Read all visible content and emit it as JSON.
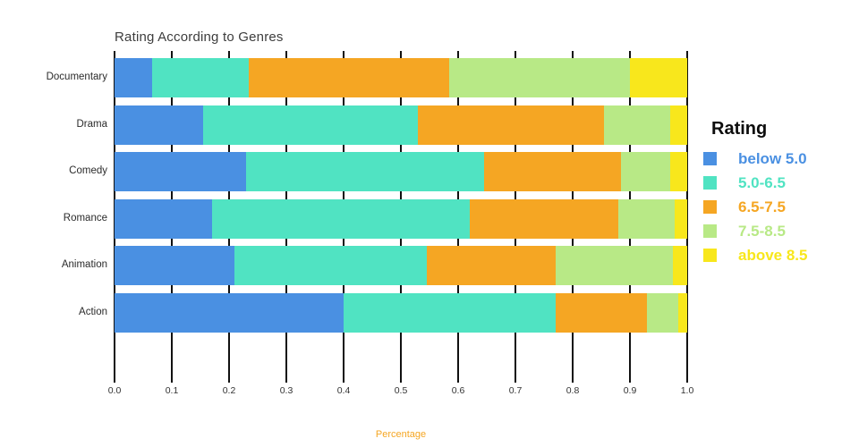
{
  "chart_data": {
    "type": "bar",
    "orientation": "horizontal-stacked",
    "title": "Rating According to Genres",
    "xlabel": "Percentage",
    "ylabel": "",
    "xlim": [
      0,
      1
    ],
    "xticks": [
      "0.0",
      "0.1",
      "0.2",
      "0.3",
      "0.4",
      "0.5",
      "0.6",
      "0.7",
      "0.8",
      "0.9",
      "1.0"
    ],
    "grid": "vertical",
    "categories": [
      "Documentary",
      "Drama",
      "Comedy",
      "Romance",
      "Animation",
      "Action"
    ],
    "legend": {
      "title": "Rating",
      "position": "right"
    },
    "series": [
      {
        "name": "below 5.0",
        "color": "#4A90E2",
        "values": [
          0.065,
          0.155,
          0.23,
          0.17,
          0.21,
          0.4
        ]
      },
      {
        "name": "5.0-6.5",
        "color": "#50E3C2",
        "values": [
          0.17,
          0.375,
          0.415,
          0.45,
          0.335,
          0.37
        ]
      },
      {
        "name": "6.5-7.5",
        "color": "#F5A623",
        "values": [
          0.35,
          0.325,
          0.24,
          0.26,
          0.225,
          0.16
        ]
      },
      {
        "name": "7.5-8.5",
        "color": "#B8E986",
        "values": [
          0.315,
          0.115,
          0.085,
          0.098,
          0.205,
          0.055
        ]
      },
      {
        "name": "above 8.5",
        "color": "#F8E71C",
        "values": [
          0.1,
          0.03,
          0.03,
          0.022,
          0.025,
          0.015
        ]
      }
    ],
    "colors": {
      "title_text": "#3d3d3d",
      "xlabel_text": "#F5A623",
      "gridline": "#111111",
      "background": "#ffffff"
    }
  }
}
